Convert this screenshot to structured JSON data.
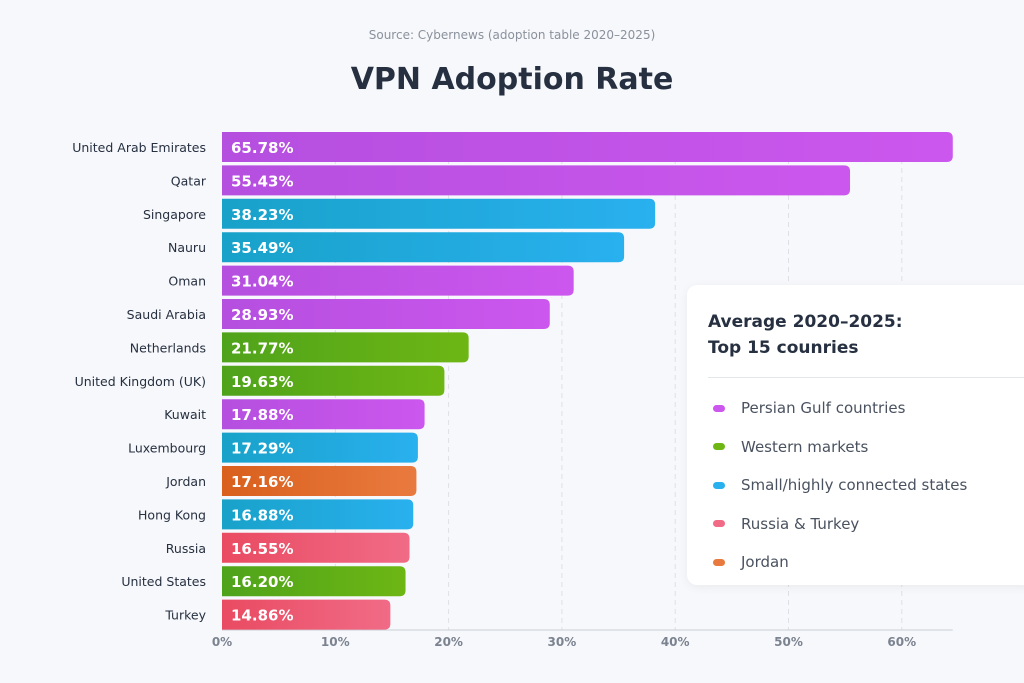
{
  "chart_data": {
    "type": "bar",
    "orientation": "horizontal",
    "source": "Source: Cybernews (adoption table 2020–2025)",
    "title": "VPN Adoption Rate",
    "categories": [
      "United Arab Emirates",
      "Qatar",
      "Singapore",
      "Nauru",
      "Oman",
      "Saudi Arabia",
      "Netherlands",
      "United Kingdom (UK)",
      "Kuwait",
      "Luxembourg",
      "Jordan",
      "Hong Kong",
      "Russia",
      "United States",
      "Turkey"
    ],
    "values": [
      65.78,
      55.43,
      38.23,
      35.49,
      31.04,
      28.93,
      21.77,
      19.63,
      17.88,
      17.29,
      17.16,
      16.88,
      16.55,
      16.2,
      14.86
    ],
    "labels": [
      "65.78%",
      "55.43%",
      "38.23%",
      "35.49%",
      "31.04%",
      "28.93%",
      "21.77%",
      "19.63%",
      "17.88%",
      "17.29%",
      "17.16%",
      "16.88%",
      "16.55%",
      "16.20%",
      "14.86%"
    ],
    "groups": [
      "gulf",
      "gulf",
      "small",
      "small",
      "gulf",
      "gulf",
      "western",
      "western",
      "gulf",
      "small",
      "jordan",
      "small",
      "rt",
      "western",
      "rt"
    ],
    "xlim": [
      0,
      64.5
    ],
    "xticks": [
      0,
      10,
      20,
      30,
      40,
      50,
      60
    ],
    "xtick_labels": [
      "0%",
      "10%",
      "20%",
      "30%",
      "40%",
      "50%",
      "60%"
    ],
    "grid": true,
    "legend": {
      "placement": "right",
      "title_line1": "Average 2020–2025:",
      "title_line2": "Top 15 counries",
      "items": [
        {
          "key": "gulf",
          "label": "Persian Gulf countries",
          "color": "#b54fe0",
          "color2": "#cc57ee"
        },
        {
          "key": "western",
          "label": "Western markets",
          "color": "#4fa31b",
          "color2": "#6db614"
        },
        {
          "key": "small",
          "label": "Small/highly connected states",
          "color": "#18a2c9",
          "color2": "#29b0ef"
        },
        {
          "key": "rt",
          "label": "Russia & Turkey",
          "color": "#e94b62",
          "color2": "#f16b86"
        },
        {
          "key": "jordan",
          "label": "Jordan",
          "color": "#d9601d",
          "color2": "#e97a3f"
        }
      ]
    }
  }
}
